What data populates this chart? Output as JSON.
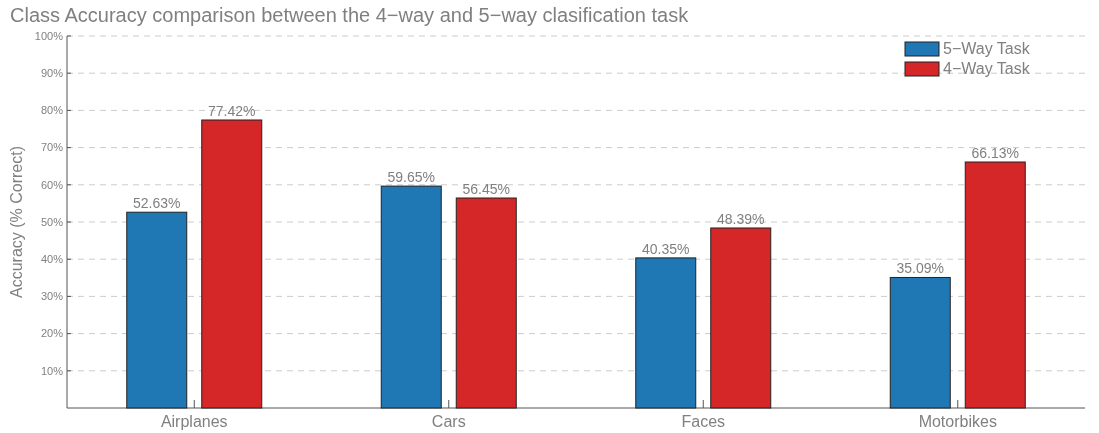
{
  "chart_data": {
    "type": "bar",
    "title": "Class Accuracy comparison between the 4−way and 5−way clasification task",
    "ylabel": "Accuracy (% Correct)",
    "categories": [
      "Airplanes",
      "Cars",
      "Faces",
      "Motorbikes"
    ],
    "series": [
      {
        "name": "5−Way Task",
        "color": "#1f77b4",
        "values": [
          52.63,
          59.65,
          40.35,
          35.09
        ],
        "value_labels": [
          "52.63%",
          "59.65%",
          "40.35%",
          "35.09%"
        ]
      },
      {
        "name": "4−Way Task",
        "color": "#d62728",
        "values": [
          77.42,
          56.45,
          48.39,
          66.13
        ],
        "value_labels": [
          "77.42%",
          "56.45%",
          "48.39%",
          "66.13%"
        ]
      }
    ],
    "ylim": [
      0,
      100
    ],
    "yticks": [
      {
        "value": 10,
        "label": "10%"
      },
      {
        "value": 20,
        "label": "20%"
      },
      {
        "value": 30,
        "label": "30%"
      },
      {
        "value": 40,
        "label": "40%"
      },
      {
        "value": 50,
        "label": "50%"
      },
      {
        "value": 60,
        "label": "60%"
      },
      {
        "value": 70,
        "label": "70%"
      },
      {
        "value": 80,
        "label": "80%"
      },
      {
        "value": 90,
        "label": "90%"
      },
      {
        "value": 100,
        "label": "100%"
      }
    ],
    "grid": "y",
    "legend": "top right"
  }
}
